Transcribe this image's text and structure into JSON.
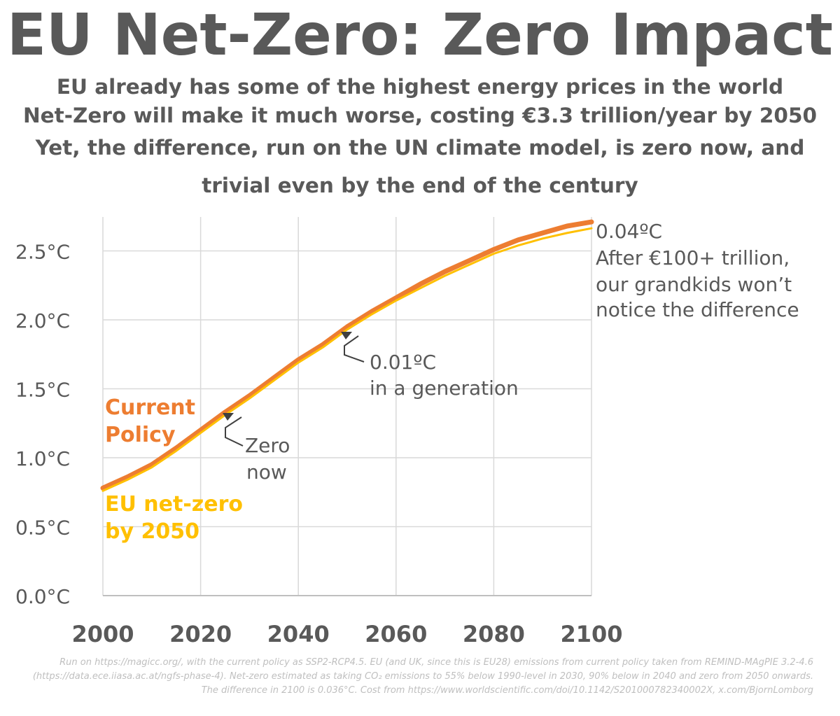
{
  "title": "EU Net-Zero: Zero Impact",
  "subtitle_lines": [
    "EU already has some of the highest energy prices in the world",
    "Net-Zero will make it much worse, costing €3.3 trillion/year by 2050",
    "Yet, the difference, run on the UN climate model, is zero now, and",
    "trivial even by the end of the century"
  ],
  "footnote": "Run on https://magicc.org/, with the current policy as SSP2-RCP4.5. EU (and UK, since this is EU28) emissions from current policy taken from REMIND-MAgPIE 3.2-4.6 (https://data.ece.iiasa.ac.at/ngfs-phase-4). Net-zero estimated as taking CO₂ emissions to 55% below 1990-level in 2030, 90% below in 2040 and zero from 2050 onwards. The difference in 2100 is 0.036°C. Cost from https://www.worldscientific.com/doi/10.1142/S201000782340002X, x.com/BjornLomborg",
  "colors": {
    "current_policy": "#ED7D31",
    "net_zero": "#FFC000",
    "text": "#595959",
    "grid": "#d9d9d9",
    "footnote": "#bfbfbf"
  },
  "chart_data": {
    "type": "line",
    "xlim": [
      2000,
      2100
    ],
    "ylim": [
      0,
      2.75
    ],
    "x_ticks": [
      2000,
      2020,
      2040,
      2060,
      2080,
      2100
    ],
    "x_tick_labels": [
      "2000",
      "2020",
      "2040",
      "2060",
      "2080",
      "2100"
    ],
    "y_ticks": [
      0,
      0.5,
      1.0,
      1.5,
      2.0,
      2.5
    ],
    "y_tick_labels": [
      "0.0°C",
      "0.5°C",
      "1.0°C",
      "1.5°C",
      "2.0°C",
      "2.5°C"
    ],
    "x": [
      2000,
      2005,
      2010,
      2015,
      2020,
      2025,
      2030,
      2035,
      2040,
      2045,
      2050,
      2055,
      2060,
      2065,
      2070,
      2075,
      2080,
      2085,
      2090,
      2095,
      2100
    ],
    "series": [
      {
        "name": "Current Policy",
        "label_lines": [
          "Current",
          "Policy"
        ],
        "color": "#ED7D31",
        "values": [
          0.78,
          0.86,
          0.95,
          1.07,
          1.2,
          1.33,
          1.45,
          1.58,
          1.71,
          1.82,
          1.95,
          2.06,
          2.16,
          2.26,
          2.35,
          2.43,
          2.51,
          2.58,
          2.63,
          2.68,
          2.71
        ]
      },
      {
        "name": "EU net-zero by 2050",
        "label_lines": [
          "EU net-zero",
          "by 2050"
        ],
        "color": "#FFC000",
        "values": [
          0.77,
          0.85,
          0.94,
          1.06,
          1.19,
          1.32,
          1.44,
          1.57,
          1.7,
          1.81,
          1.94,
          2.05,
          2.15,
          2.24,
          2.33,
          2.41,
          2.49,
          2.55,
          2.6,
          2.64,
          2.674
        ]
      }
    ],
    "annotations": [
      {
        "lines": [
          "Zero",
          "now"
        ],
        "x": 2025,
        "y": 1.32
      },
      {
        "lines": [
          "0.01ºC",
          "in a generation"
        ],
        "x": 2049,
        "y": 1.92
      },
      {
        "lines": [
          "0.04ºC",
          "After €100+ trillion,",
          "our grandkids won’t",
          "notice the difference"
        ],
        "x": 2100,
        "y": 2.7
      }
    ]
  }
}
